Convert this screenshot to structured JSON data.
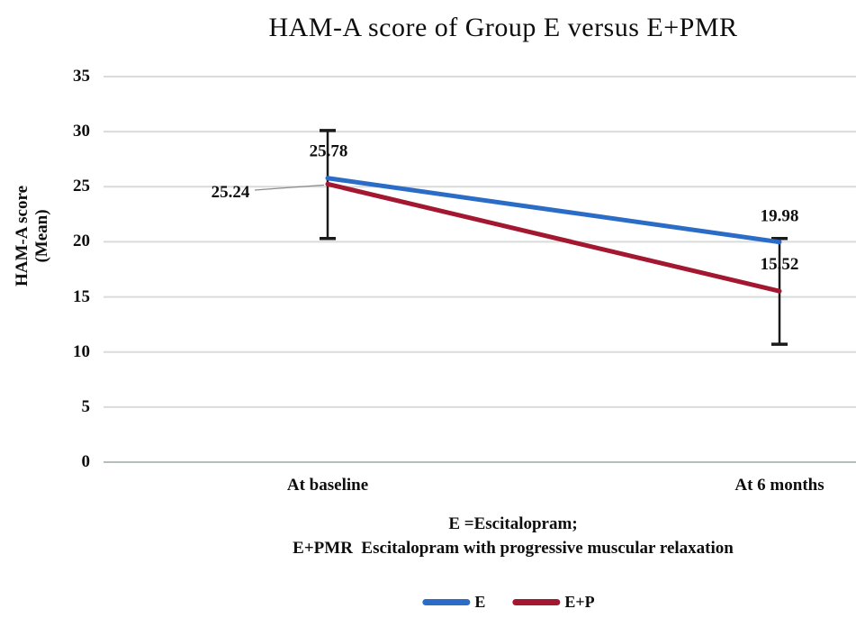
{
  "title": "HAM-A score of Group E versus E+PMR",
  "y_axis": {
    "label_lines": [
      "HAM-A score",
      "(Mean)"
    ],
    "ticks": [
      35,
      30,
      25,
      20,
      15,
      10,
      5,
      0
    ]
  },
  "x_axis": {
    "categories": [
      "At baseline",
      "At 6 months"
    ]
  },
  "chart_data": {
    "type": "line",
    "title": "HAM-A score of Group E versus E+PMR",
    "xlabel": "",
    "ylabel": "HAM-A score (Mean)",
    "categories": [
      "At baseline",
      "At 6 months"
    ],
    "series": [
      {
        "name": "E",
        "color": "#2B6CC6",
        "values": [
          25.78,
          19.98
        ]
      },
      {
        "name": "E+P",
        "color": "#A31731",
        "values": [
          25.24,
          15.52
        ]
      }
    ],
    "data_labels": [
      [
        "25.78",
        "19.98"
      ],
      [
        "25.24",
        "15.52"
      ]
    ],
    "error_bars": [
      {
        "category": "At baseline",
        "top": 30.1,
        "bottom": 20.3
      },
      {
        "category": "At 6 months",
        "top": 20.3,
        "bottom": 10.7
      }
    ],
    "ylim": [
      0,
      35
    ],
    "ytick_interval": 5,
    "grid": "horizontal",
    "legend_position": "bottom"
  },
  "caption": {
    "line1": "E =Escitalopram;",
    "line2": "E+PMR  Escitalopram with progressive muscular relaxation"
  },
  "legend": {
    "items": [
      {
        "label": "E",
        "color": "#2B6CC6"
      },
      {
        "label": "E+P",
        "color": "#A31731"
      }
    ]
  },
  "colors": {
    "gridline": "#d8dcda",
    "zero_line": "#b7bdba",
    "error_bar": "#1a1a1a",
    "leader_line": "#8c8c8c",
    "text": "#0e0e0e"
  }
}
